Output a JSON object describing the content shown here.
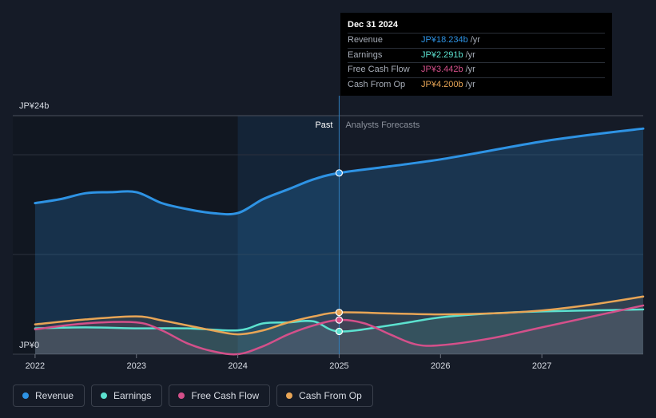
{
  "chart_data": {
    "type": "area",
    "title": "",
    "y_axis": {
      "top_label": "JP¥24b",
      "bottom_label": "JP¥0",
      "ylim": [
        0,
        24
      ]
    },
    "x_ticks": [
      "2022",
      "2023",
      "2024",
      "2025",
      "2026",
      "2027"
    ],
    "x_tick_values": [
      2022,
      2023,
      2024,
      2025,
      2026,
      2027
    ],
    "xlim": [
      2021.78,
      2028.0
    ],
    "past_label": "Past",
    "forecast_label": "Analysts Forecasts",
    "divider_x": 2025.0,
    "highlight_range": [
      2024.0,
      2025.0
    ],
    "series": [
      {
        "name": "Revenue",
        "color": "#2e93e4",
        "x": [
          2022.0,
          2022.25,
          2022.5,
          2022.75,
          2023.0,
          2023.25,
          2023.5,
          2023.75,
          2024.0,
          2024.25,
          2024.5,
          2024.75,
          2025.0,
          2025.5,
          2026.0,
          2026.5,
          2027.0,
          2027.5,
          2028.0
        ],
        "values": [
          15.2,
          15.6,
          16.2,
          16.3,
          16.3,
          15.2,
          14.6,
          14.2,
          14.2,
          15.6,
          16.6,
          17.6,
          18.234,
          18.9,
          19.6,
          20.5,
          21.4,
          22.1,
          22.7
        ]
      },
      {
        "name": "Earnings",
        "color": "#5ce1cf",
        "x": [
          2022.0,
          2022.5,
          2023.0,
          2023.5,
          2024.0,
          2024.25,
          2024.5,
          2024.75,
          2025.0,
          2025.5,
          2026.0,
          2026.5,
          2027.0,
          2028.0
        ],
        "values": [
          2.6,
          2.7,
          2.6,
          2.6,
          2.4,
          3.1,
          3.2,
          3.3,
          2.291,
          2.9,
          3.7,
          4.1,
          4.3,
          4.5
        ]
      },
      {
        "name": "Free Cash Flow",
        "color": "#d4508a",
        "x": [
          2022.0,
          2022.5,
          2023.0,
          2023.25,
          2023.5,
          2023.75,
          2024.0,
          2024.25,
          2024.5,
          2024.75,
          2025.0,
          2025.25,
          2025.5,
          2025.75,
          2026.0,
          2026.5,
          2027.0,
          2028.0
        ],
        "values": [
          2.5,
          3.1,
          3.2,
          2.4,
          1.1,
          0.3,
          0.0,
          0.8,
          2.0,
          2.9,
          3.442,
          3.1,
          2.0,
          1.0,
          0.9,
          1.6,
          2.7,
          4.9
        ]
      },
      {
        "name": "Cash From Op",
        "color": "#e8a556",
        "x": [
          2022.0,
          2022.5,
          2023.0,
          2023.25,
          2023.5,
          2023.75,
          2024.0,
          2024.25,
          2024.5,
          2024.75,
          2025.0,
          2025.5,
          2026.0,
          2026.5,
          2027.0,
          2027.5,
          2028.0
        ],
        "values": [
          3.0,
          3.5,
          3.8,
          3.4,
          2.9,
          2.4,
          2.0,
          2.4,
          3.2,
          3.8,
          4.2,
          4.1,
          4.0,
          4.1,
          4.4,
          5.0,
          5.8
        ]
      }
    ]
  },
  "tooltip": {
    "date": "Dec 31 2024",
    "rows": [
      {
        "label": "Revenue",
        "value": "JP¥18.234b",
        "unit": "/yr",
        "color": "#2e93e4"
      },
      {
        "label": "Earnings",
        "value": "JP¥2.291b",
        "unit": "/yr",
        "color": "#5ce1cf"
      },
      {
        "label": "Free Cash Flow",
        "value": "JP¥3.442b",
        "unit": "/yr",
        "color": "#d4508a"
      },
      {
        "label": "Cash From Op",
        "value": "JP¥4.200b",
        "unit": "/yr",
        "color": "#e8a556"
      }
    ]
  },
  "legend": [
    {
      "label": "Revenue",
      "color": "#2e93e4"
    },
    {
      "label": "Earnings",
      "color": "#5ce1cf"
    },
    {
      "label": "Free Cash Flow",
      "color": "#d4508a"
    },
    {
      "label": "Cash From Op",
      "color": "#e8a556"
    }
  ]
}
